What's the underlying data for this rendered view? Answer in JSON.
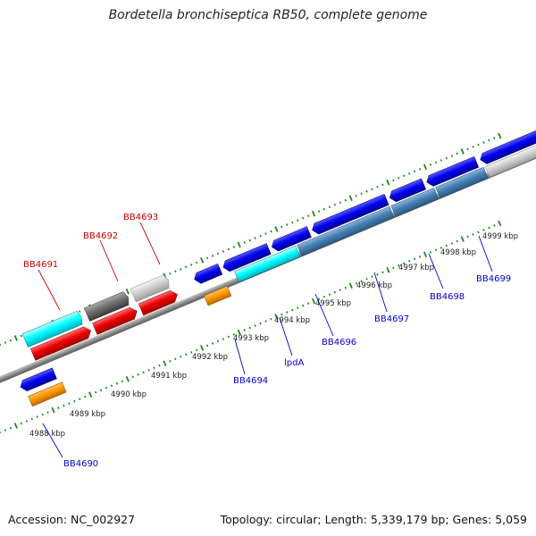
{
  "header": {
    "title": "Bordetella bronchiseptica RB50, complete genome"
  },
  "footer": {
    "accession": "Accession: NC_002927",
    "topology": "Topology: circular; Length: 5,339,179 bp; Genes: 5,059"
  },
  "scale_labels": [
    "4988 kbp",
    "4989 kbp",
    "4990 kbp",
    "4991 kbp",
    "4992 kbp",
    "4993 kbp",
    "4994 kbp",
    "4995 kbp",
    "4996 kbp",
    "4997 kbp",
    "4998 kbp",
    "4999 kbp"
  ],
  "gene_labels": {
    "bb4691": "BB4691",
    "bb4692": "BB4692",
    "bb4693": "BB4693",
    "bb4690": "BB4690",
    "bb4694": "BB4694",
    "lpda": "lpdA",
    "bb4696": "BB4696",
    "bb4697": "BB4697",
    "bb4698": "BB4698",
    "bb4699": "BB4699"
  },
  "colors": {
    "forward_label": "#cc0000",
    "reverse_label": "#0000cc",
    "tick": "#1a8a1a",
    "backbone": "#8a8a8a"
  }
}
